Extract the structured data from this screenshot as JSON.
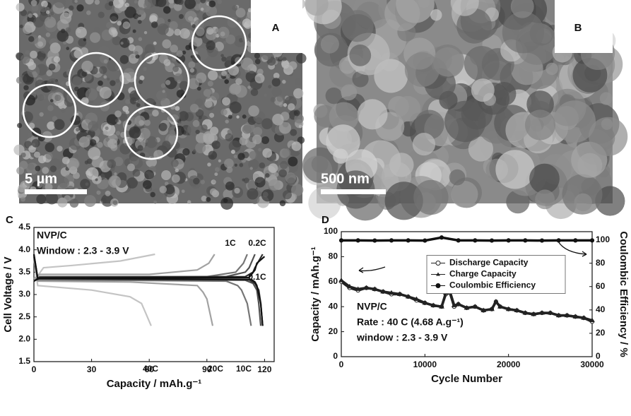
{
  "panels": {
    "A": {
      "label": "A",
      "scale_bar": "5 µm"
    },
    "B": {
      "label": "B",
      "scale_bar": "500 nm"
    }
  },
  "chart_data": [
    {
      "type": "line",
      "panel_label": "C",
      "xlabel": "Capacity / mAh.g⁻¹",
      "ylabel": "Cell Voltage / V",
      "annotations": [
        "NVP/C",
        "Window : 2.3 - 3.9 V"
      ],
      "xlim": [
        0,
        125
      ],
      "ylim": [
        1.5,
        4.5
      ],
      "xticks": [
        0,
        30,
        60,
        90,
        120
      ],
      "yticks": [
        1.5,
        {
          "value": 2,
          "label": "2.0"
        },
        2.5,
        {
          "value": 3,
          "label": "3.0"
        },
        3.5,
        {
          "value": 4,
          "label": "4.0"
        },
        4.5
      ],
      "series": [
        {
          "name": "40C",
          "color": "#c4c4c4",
          "charge": {
            "x": [
              0,
              5,
              20,
              45,
              63
            ],
            "values": [
              3.3,
              3.6,
              3.65,
              3.75,
              3.9
            ]
          },
          "discharge": {
            "x": [
              0,
              2,
              30,
              50,
              56,
              58,
              61
            ],
            "values": [
              3.8,
              3.2,
              3.1,
              2.95,
              2.8,
              2.6,
              2.3
            ]
          }
        },
        {
          "name": "20C",
          "color": "#a2a2a2",
          "charge": {
            "x": [
              0,
              3,
              60,
              85,
              91,
              94
            ],
            "values": [
              3.35,
              3.45,
              3.45,
              3.55,
              3.7,
              3.9
            ]
          },
          "discharge": {
            "x": [
              0,
              2,
              50,
              85,
              88,
              90,
              93
            ],
            "values": [
              3.8,
              3.3,
              3.28,
              3.2,
              3.05,
              2.9,
              2.3
            ]
          }
        },
        {
          "name": "10C",
          "color": "#767676",
          "charge": {
            "x": [
              0,
              3,
              90,
              105,
              109,
              111
            ],
            "values": [
              3.3,
              3.38,
              3.4,
              3.5,
              3.7,
              3.9
            ]
          },
          "discharge": {
            "x": [
              0,
              2,
              100,
              106,
              108,
              111,
              113
            ],
            "values": [
              3.85,
              3.33,
              3.3,
              3.2,
              3.1,
              2.8,
              2.3
            ]
          }
        },
        {
          "name": "1C",
          "color": "#505050",
          "charge": {
            "x": [
              0,
              3,
              100,
              110,
              112,
              115
            ],
            "values": [
              3.3,
              3.4,
              3.4,
              3.5,
              3.6,
              3.9
            ]
          },
          "discharge": {
            "x": [
              0,
              2,
              110,
              114,
              116,
              117,
              118
            ],
            "values": [
              3.85,
              3.35,
              3.32,
              3.25,
              3.1,
              2.8,
              2.3
            ]
          }
        },
        {
          "name": "0.2C",
          "color": "#2e2e2e",
          "charge": {
            "x": [
              0,
              3,
              110,
              114,
              115,
              119
            ],
            "values": [
              3.3,
              3.38,
              3.4,
              3.5,
              3.6,
              3.9
            ]
          },
          "discharge": {
            "x": [
              0,
              2,
              112,
              115,
              117,
              118,
              119
            ],
            "values": [
              3.9,
              3.36,
              3.33,
              3.25,
              3.1,
              2.8,
              2.3
            ]
          }
        },
        {
          "name": "0.1C",
          "color": "#111111",
          "charge": {
            "x": [
              0,
              3,
              112,
              115,
              116,
              120
            ],
            "values": [
              3.3,
              3.37,
              3.38,
              3.55,
              3.7,
              3.85
            ]
          },
          "discharge": {
            "x": [
              0,
              2,
              113,
              115,
              116,
              118,
              119
            ],
            "values": [
              3.9,
              3.36,
              3.34,
              3.28,
              3.2,
              2.8,
              2.3
            ]
          }
        }
      ]
    },
    {
      "type": "scatter",
      "panel_label": "D",
      "xlabel": "Cycle Number",
      "ylabel": "Capacity / mAh.g⁻¹",
      "y2label": "Coulombic Efficiency / %",
      "annotations": [
        "NVP/C",
        "Rate : 40 C (4.68 A.g⁻¹)",
        "window : 2.3 - 3.9 V"
      ],
      "xlim": [
        0,
        30000
      ],
      "ylim": [
        0,
        100
      ],
      "y2lim": [
        0,
        107
      ],
      "xticks": [
        0,
        10000,
        20000,
        30000
      ],
      "yticks": [
        0,
        20,
        40,
        60,
        80,
        100
      ],
      "y2ticks": [
        0,
        20,
        40,
        60,
        80,
        100
      ],
      "legend": "center right",
      "series": [
        {
          "name": "Discharge Capacity",
          "color": "#222222",
          "marker": "open-circle",
          "x": [
            0,
            1000,
            2000,
            3000,
            4000,
            5000,
            6000,
            7000,
            8000,
            9000,
            10000,
            11000,
            12000,
            12500,
            13000,
            13500,
            14000,
            15000,
            16000,
            17000,
            18000,
            18500,
            19000,
            20000,
            21000,
            22000,
            23000,
            24000,
            25000,
            26000,
            27000,
            28000,
            29000,
            30000
          ],
          "values": [
            60,
            55,
            53,
            55,
            54,
            52,
            50,
            50,
            48,
            45,
            43,
            41,
            40,
            50,
            51,
            40,
            42,
            39,
            40,
            37,
            38,
            44,
            40,
            38,
            37,
            35,
            34,
            35,
            35,
            33,
            33,
            32,
            31,
            28
          ]
        },
        {
          "name": "Charge Capacity",
          "color": "#222222",
          "marker": "triangle",
          "x": [
            0,
            1000,
            2000,
            3000,
            4000,
            5000,
            6000,
            7000,
            8000,
            9000,
            10000,
            11000,
            12000,
            12500,
            13000,
            13500,
            14000,
            15000,
            16000,
            17000,
            18000,
            18500,
            19000,
            20000,
            21000,
            22000,
            23000,
            24000,
            25000,
            26000,
            27000,
            28000,
            29000,
            30000
          ],
          "values": [
            61,
            56,
            54,
            55,
            54,
            52,
            51,
            50,
            48,
            46,
            43,
            41,
            40,
            51,
            52,
            41,
            42,
            39,
            40,
            37,
            38,
            44,
            40,
            38,
            37,
            35,
            34,
            35,
            35,
            33,
            33,
            32,
            31,
            29
          ]
        },
        {
          "name": "Coulombic Efficiency",
          "color": "#111111",
          "marker": "circle",
          "axis": "y2",
          "x": [
            0,
            2000,
            4000,
            6000,
            8000,
            10000,
            12000,
            14000,
            16000,
            18000,
            20000,
            22000,
            24000,
            26000,
            28000,
            30000
          ],
          "values": [
            99.5,
            99.5,
            99.4,
            99.5,
            99.5,
            99.4,
            102,
            99.5,
            99.5,
            99.4,
            99.5,
            99.5,
            99.4,
            99.5,
            99.5,
            99.5
          ]
        }
      ]
    }
  ]
}
